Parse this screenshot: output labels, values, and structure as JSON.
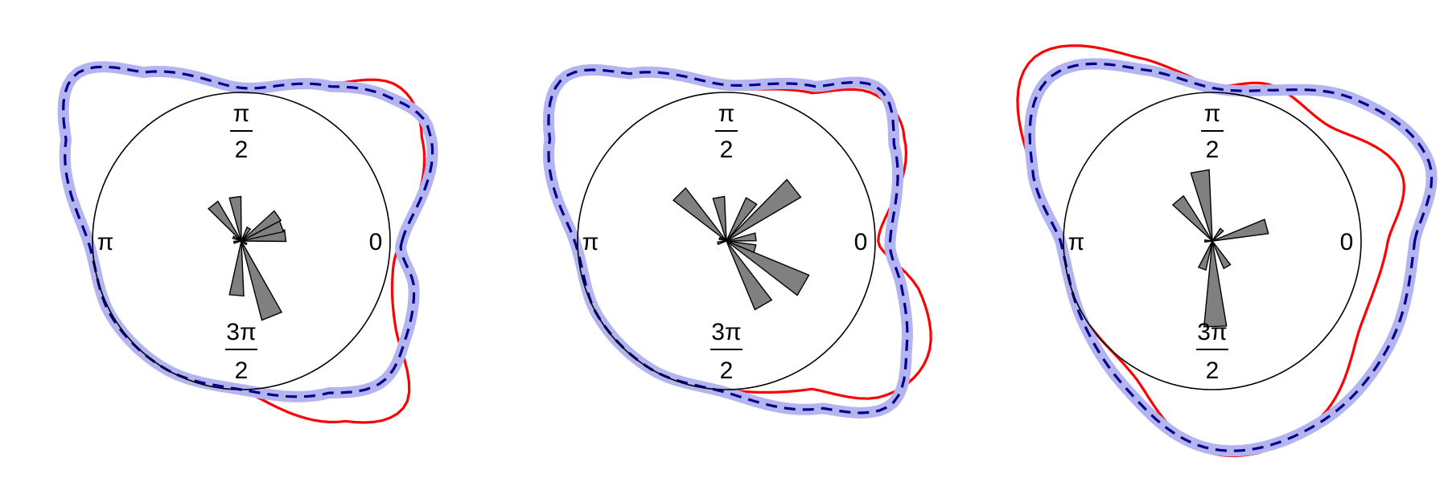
{
  "chart_data": [
    {
      "type": "polar-rose-with-density",
      "panel": "left",
      "angle_labels": {
        "zero": "0",
        "half_pi": {
          "numerator": "π",
          "denominator": "2"
        },
        "pi": "π",
        "three_half_pi": {
          "numerator": "3π",
          "denominator": "2"
        }
      },
      "reference_circle_radius": 1.0,
      "rose_bins": [
        {
          "angle_deg": 7,
          "length": 0.3
        },
        {
          "angle_deg": 20,
          "length": 0.29
        },
        {
          "angle_deg": 35,
          "length": 0.3
        },
        {
          "angle_deg": 60,
          "length": 0.1
        },
        {
          "angle_deg": 98,
          "length": 0.3
        },
        {
          "angle_deg": 128,
          "length": 0.31
        },
        {
          "angle_deg": 155,
          "length": 0.06
        },
        {
          "angle_deg": 190,
          "length": 0.05
        },
        {
          "angle_deg": 265,
          "length": 0.37
        },
        {
          "angle_deg": 292,
          "length": 0.55
        },
        {
          "angle_deg": 330,
          "length": 0.04
        }
      ],
      "series": [
        {
          "name": "density-fit",
          "color": "#ff0000",
          "dash": "solid",
          "points_polar": [
            [
              0,
              1.08
            ],
            [
              30,
              1.4
            ],
            [
              45,
              1.48
            ],
            [
              60,
              1.22
            ],
            [
              90,
              1.03
            ],
            [
              120,
              1.32
            ],
            [
              135,
              1.59
            ],
            [
              150,
              1.38
            ],
            [
              180,
              1.03
            ],
            [
              210,
              1.01
            ],
            [
              240,
              1.0
            ],
            [
              270,
              1.0
            ],
            [
              300,
              1.4
            ],
            [
              315,
              1.56
            ],
            [
              330,
              1.2
            ],
            [
              345,
              1.05
            ],
            [
              360,
              1.08
            ]
          ]
        },
        {
          "name": "density-reference",
          "color": "#00008b",
          "band_color": "#b4b4f0",
          "dash": "dashed",
          "points_polar": [
            [
              0,
              1.08
            ],
            [
              30,
              1.46
            ],
            [
              45,
              1.38
            ],
            [
              60,
              1.2
            ],
            [
              90,
              1.03
            ],
            [
              120,
              1.31
            ],
            [
              135,
              1.58
            ],
            [
              150,
              1.36
            ],
            [
              180,
              1.03
            ],
            [
              210,
              1.01
            ],
            [
              240,
              1.0
            ],
            [
              270,
              1.0
            ],
            [
              300,
              1.18
            ],
            [
              315,
              1.34
            ],
            [
              330,
              1.28
            ],
            [
              345,
              1.2
            ],
            [
              360,
              1.08
            ]
          ]
        }
      ]
    },
    {
      "type": "polar-rose-with-density",
      "panel": "middle",
      "angle_labels": {
        "zero": "0",
        "half_pi": {
          "numerator": "π",
          "denominator": "2"
        },
        "pi": "π",
        "three_half_pi": {
          "numerator": "3π",
          "denominator": "2"
        }
      },
      "reference_circle_radius": 1.0,
      "rose_bins": [
        {
          "angle_deg": 8,
          "length": 0.2
        },
        {
          "angle_deg": 38,
          "length": 0.58
        },
        {
          "angle_deg": 58,
          "length": 0.32
        },
        {
          "angle_deg": 100,
          "length": 0.3
        },
        {
          "angle_deg": 135,
          "length": 0.45
        },
        {
          "angle_deg": 160,
          "length": 0.05
        },
        {
          "angle_deg": 195,
          "length": 0.06
        },
        {
          "angle_deg": 300,
          "length": 0.5
        },
        {
          "angle_deg": 330,
          "length": 0.6
        },
        {
          "angle_deg": 345,
          "length": 0.2
        }
      ],
      "series": [
        {
          "name": "density-fit",
          "color": "#ff0000",
          "dash": "solid",
          "points_polar": [
            [
              0,
              1.02
            ],
            [
              30,
              1.38
            ],
            [
              45,
              1.4
            ],
            [
              60,
              1.15
            ],
            [
              90,
              1.03
            ],
            [
              120,
              1.3
            ],
            [
              135,
              1.55
            ],
            [
              150,
              1.36
            ],
            [
              180,
              1.0
            ],
            [
              210,
              1.0
            ],
            [
              240,
              1.0
            ],
            [
              270,
              1.0
            ],
            [
              300,
              1.15
            ],
            [
              315,
              1.48
            ],
            [
              330,
              1.56
            ],
            [
              345,
              1.35
            ],
            [
              360,
              1.02
            ]
          ]
        },
        {
          "name": "density-reference",
          "color": "#00008b",
          "band_color": "#b4b4f0",
          "dash": "dashed",
          "points_polar": [
            [
              0,
              1.1
            ],
            [
              30,
              1.3
            ],
            [
              45,
              1.45
            ],
            [
              60,
              1.2
            ],
            [
              90,
              1.05
            ],
            [
              120,
              1.3
            ],
            [
              135,
              1.55
            ],
            [
              150,
              1.37
            ],
            [
              180,
              1.02
            ],
            [
              210,
              1.0
            ],
            [
              240,
              1.0
            ],
            [
              270,
              1.02
            ],
            [
              300,
              1.3
            ],
            [
              315,
              1.56
            ],
            [
              330,
              1.4
            ],
            [
              345,
              1.22
            ],
            [
              360,
              1.1
            ]
          ]
        }
      ]
    },
    {
      "type": "polar-rose-with-density",
      "panel": "right",
      "angle_labels": {
        "zero": "0",
        "half_pi": {
          "numerator": "π",
          "denominator": "2"
        },
        "pi": "π",
        "three_half_pi": {
          "numerator": "3π",
          "denominator": "2"
        }
      },
      "reference_circle_radius": 1.0,
      "rose_bins": [
        {
          "angle_deg": 15,
          "length": 0.38
        },
        {
          "angle_deg": 50,
          "length": 0.1
        },
        {
          "angle_deg": 100,
          "length": 0.48
        },
        {
          "angle_deg": 130,
          "length": 0.36
        },
        {
          "angle_deg": 180,
          "length": 0.05
        },
        {
          "angle_deg": 250,
          "length": 0.2
        },
        {
          "angle_deg": 272,
          "length": 0.58
        },
        {
          "angle_deg": 300,
          "length": 0.2
        }
      ],
      "series": [
        {
          "name": "density-fit",
          "color": "#ff0000",
          "dash": "solid",
          "points_polar": [
            [
              0,
              1.18
            ],
            [
              20,
              1.35
            ],
            [
              45,
              1.1
            ],
            [
              70,
              1.12
            ],
            [
              90,
              1.05
            ],
            [
              110,
              1.3
            ],
            [
              135,
              1.72
            ],
            [
              160,
              1.28
            ],
            [
              180,
              1.02
            ],
            [
              210,
              1.0
            ],
            [
              240,
              1.05
            ],
            [
              270,
              1.43
            ],
            [
              300,
              1.4
            ],
            [
              330,
              1.15
            ],
            [
              360,
              1.18
            ]
          ]
        },
        {
          "name": "density-reference",
          "color": "#00008b",
          "band_color": "#b4b4f0",
          "dash": "dashed",
          "points_polar": [
            [
              0,
              1.36
            ],
            [
              20,
              1.55
            ],
            [
              45,
              1.35
            ],
            [
              70,
              1.08
            ],
            [
              90,
              1.03
            ],
            [
              110,
              1.22
            ],
            [
              135,
              1.55
            ],
            [
              160,
              1.28
            ],
            [
              180,
              1.02
            ],
            [
              210,
              1.02
            ],
            [
              240,
              1.15
            ],
            [
              270,
              1.4
            ],
            [
              300,
              1.42
            ],
            [
              330,
              1.38
            ],
            [
              360,
              1.36
            ]
          ]
        }
      ]
    }
  ]
}
